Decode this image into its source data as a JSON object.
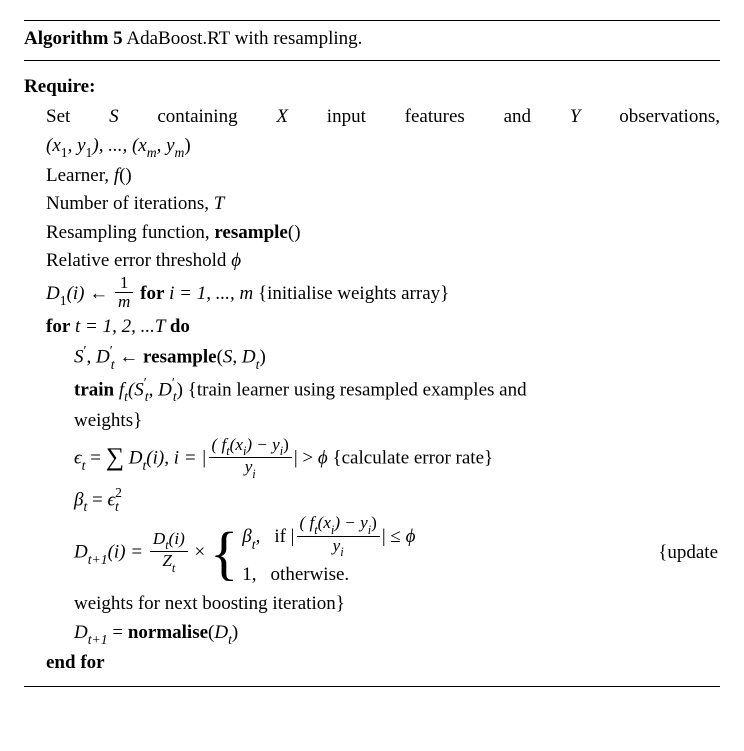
{
  "title_prefix": "Algorithm 5",
  "title_rest": " AdaBoost.RT with resampling.",
  "require": "Require:",
  "l1a": "Set ",
  "l1_S": "S",
  "l1b": " containing ",
  "l1_X": "X",
  "l1c": " input features and ",
  "l1_Y": "Y",
  "l1d": " observations,",
  "l2": "(x",
  "l2_s1": "1",
  "l2b": ", y",
  "l2_s2": "1",
  "l2c": "), ..., (x",
  "l2_sm1": "m",
  "l2d": ", y",
  "l2_sm2": "m",
  "l2e": ")",
  "l3a": "Learner, ",
  "l3_f": "f",
  "l3b": "()",
  "l4a": "Number of iterations, ",
  "l4_T": "T",
  "l5a": "Resampling function, ",
  "l5_b": "resample",
  "l5c": "()",
  "l6a": "Relative error threshold ",
  "l6_phi": "ϕ",
  "l7_D": "D",
  "l7_s1": "1",
  "l7a": "(i) ← ",
  "l7_num": "1",
  "l7_den": "m",
  "l7b": " for",
  "l7c": " i = 1, ..., m ",
  "l7d": "{initialise weights array}",
  "l8a": "for",
  "l8b": " t = 1, 2, ...T ",
  "l8c": "do",
  "l9_S": "S",
  "l9_p": "′",
  "l9a": ", ",
  "l9_D": "D",
  "l9_t": "t",
  "l9b": " ← ",
  "l9_fn": "resample",
  "l9c": "(",
  "l9_S2": "S",
  "l9d": ", ",
  "l9_D2": "D",
  "l9e": ")",
  "l10a": "train",
  "l10b": " f",
  "l10c": "(S",
  "l10d": ", D",
  "l10e": ") ",
  "l10f": "{train learner using resampled examples and",
  "l10g": "weights}",
  "l11_eps": "ϵ",
  "l11_t": "t",
  "l11a": " = ",
  "l11_sum": "∑",
  "l11b": " D",
  "l11c": "(i), i = |",
  "l11_num": "( f",
  "l11_num2": "(x",
  "l11_num3": ") − y",
  "l11_num4": ")",
  "l11_den": "y",
  "l11d": "| > ",
  "l11_phi": "ϕ",
  "l11e": " {calculate error rate}",
  "l12_b": "β",
  "l12a": " = ",
  "l12_e": "ϵ",
  "l12_sup": "2",
  "l13_D": "D",
  "l13_tp1": "t+1",
  "l13a": "(i) = ",
  "l13_num": "D",
  "l13_numb": "(i)",
  "l13_den": "Z",
  "l13b": " × ",
  "l13_case1a": "β",
  "l13_case1b": ",",
  "l13_if": "if |",
  "l13_cnum": "( f",
  "l13_cnum2": "(x",
  "l13_cnum3": ") − y",
  "l13_cnum4": ")",
  "l13_cden": "y",
  "l13_ifend": "| ≤ ",
  "l13_phi": "ϕ",
  "l13_case2a": "1,",
  "l13_case2b": "otherwise.",
  "l13_right": "{update",
  "l14": "weights for next boosting iteration}",
  "l15_D": "D",
  "l15a": " = ",
  "l15_fn": "normalise",
  "l15b": "(",
  "l15_D2": "D",
  "l15c": ")",
  "l16": "end for"
}
